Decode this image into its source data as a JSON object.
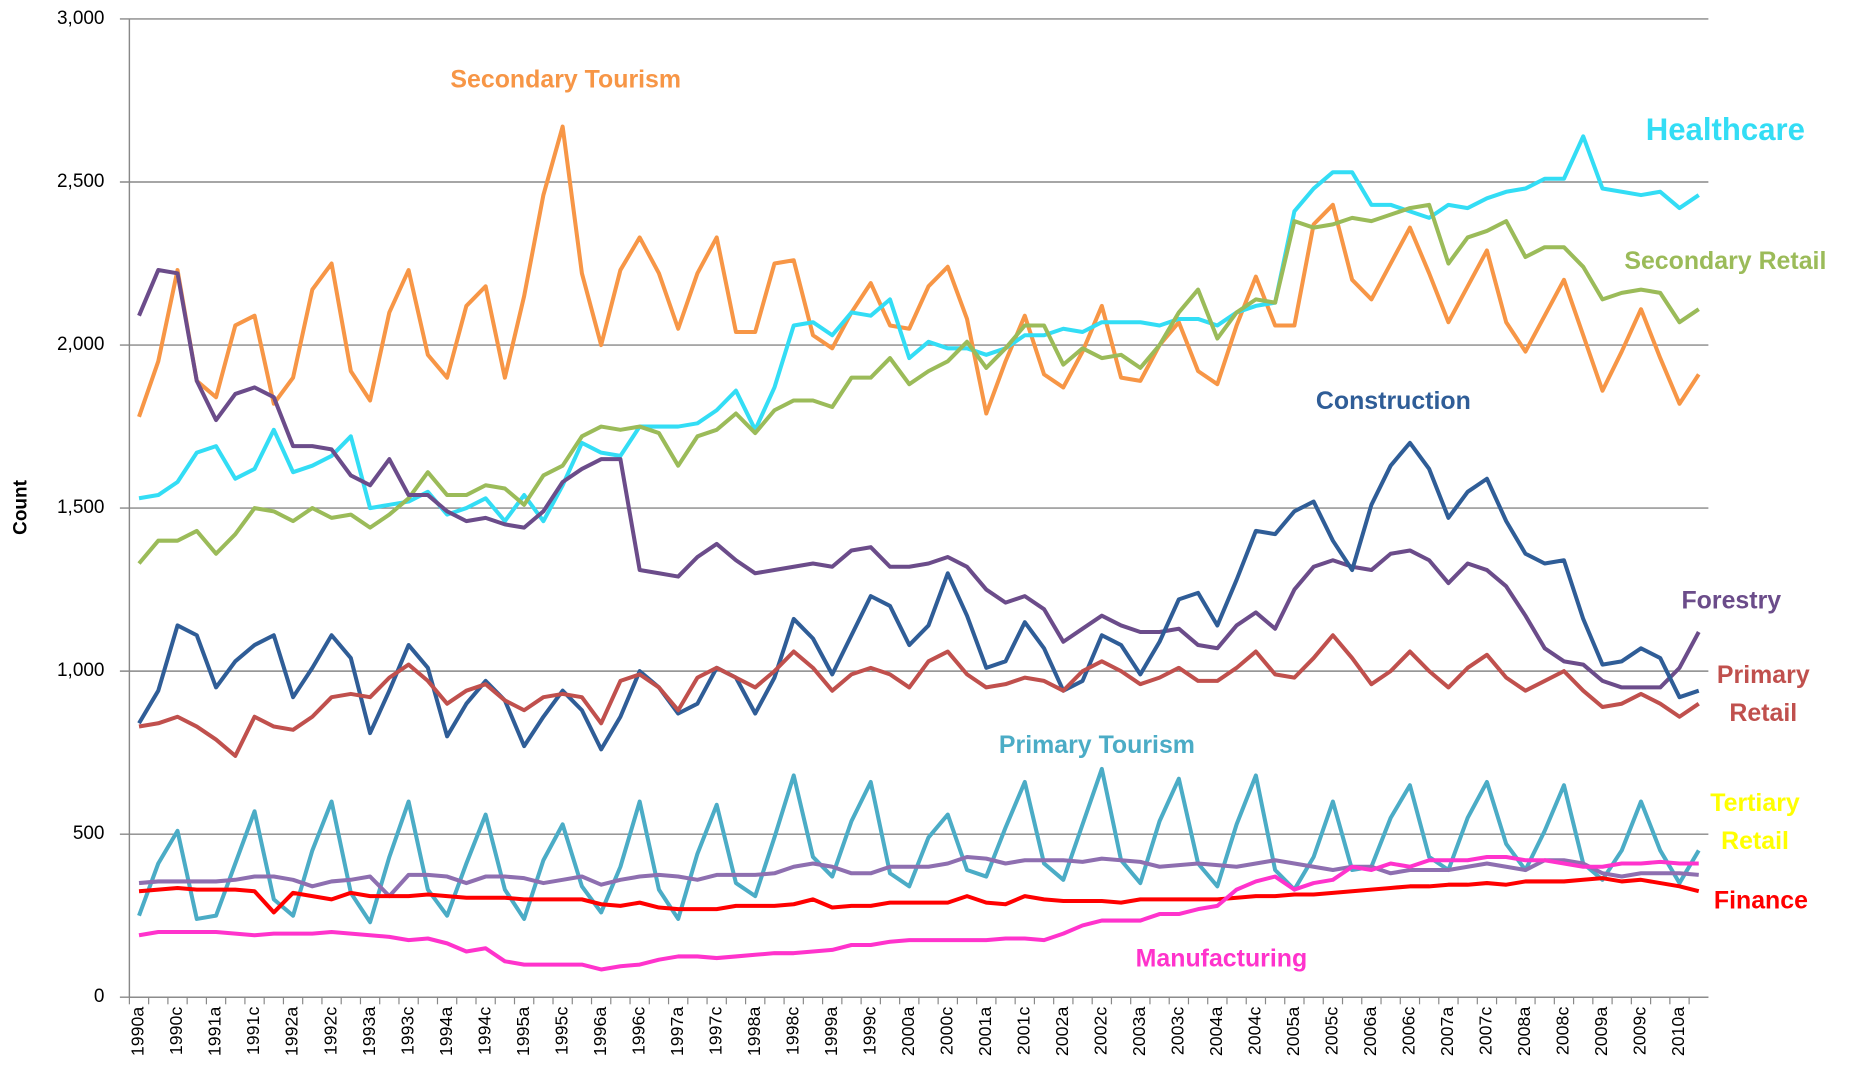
{
  "chart_data": {
    "type": "line",
    "y_label": "Count",
    "grid": true,
    "categories": [
      "1990a",
      null,
      "1990c",
      null,
      "1991a",
      null,
      "1991c",
      null,
      "1992a",
      null,
      "1992c",
      null,
      "1993a",
      null,
      "1993c",
      null,
      "1994a",
      null,
      "1994c",
      null,
      "1995a",
      null,
      "1995c",
      null,
      "1996a",
      null,
      "1996c",
      null,
      "1997a",
      null,
      "1997c",
      null,
      "1998a",
      null,
      "1998c",
      null,
      "1999a",
      null,
      "1999c",
      null,
      "2000a",
      null,
      "2000c",
      null,
      "2001a",
      null,
      "2001c",
      null,
      "2002a",
      null,
      "2002c",
      null,
      "2003a",
      null,
      "2003c",
      null,
      "2004a",
      null,
      "2004c",
      null,
      "2005a",
      null,
      "2005c",
      null,
      "2006a",
      null,
      "2006c",
      null,
      "2007a",
      null,
      "2007c",
      null,
      "2008a",
      null,
      "2008c",
      null,
      "2009a",
      null,
      "2009c",
      null,
      "2010a",
      null
    ],
    "ylim": [
      0,
      3000
    ],
    "yticks": [
      0,
      500,
      {
        "value": 1000,
        "label": "1,000"
      },
      {
        "value": 1500,
        "label": "1,500"
      },
      {
        "value": 2000,
        "label": "2,000"
      },
      {
        "value": 2500,
        "label": "2,500"
      },
      {
        "value": 3000,
        "label": "3,000"
      }
    ],
    "series": [
      {
        "name": "Secondary Tourism",
        "color": "#f79646",
        "label_color": "#f79646",
        "values": [
          1780,
          1950,
          2230,
          1890,
          1840,
          2060,
          2090,
          1820,
          1900,
          2170,
          2250,
          1920,
          1830,
          2100,
          2230,
          1970,
          1900,
          2120,
          2180,
          1900,
          2150,
          2460,
          2670,
          2220,
          2000,
          2230,
          2330,
          2220,
          2050,
          2220,
          2330,
          2040,
          2040,
          2250,
          2260,
          2030,
          1990,
          2100,
          2190,
          2060,
          2050,
          2180,
          2240,
          2080,
          1790,
          1950,
          2090,
          1910,
          1870,
          1980,
          2120,
          1900,
          1890,
          2000,
          2070,
          1920,
          1880,
          2060,
          2210,
          2060,
          2060,
          2370,
          2430,
          2200,
          2140,
          2250,
          2360,
          2220,
          2070,
          2180,
          2290,
          2070,
          1980,
          2090,
          2200,
          2030,
          1860,
          1980,
          2110,
          1960,
          1820,
          1910
        ]
      },
      {
        "name": "Healthcare",
        "color": "#33ddf5",
        "label_color": "#33ddf5",
        "values": [
          1530,
          1540,
          1580,
          1670,
          1690,
          1590,
          1620,
          1740,
          1610,
          1630,
          1660,
          1720,
          1500,
          1510,
          1520,
          1550,
          1480,
          1500,
          1530,
          1460,
          1540,
          1460,
          1570,
          1700,
          1670,
          1660,
          1750,
          1750,
          1750,
          1760,
          1800,
          1860,
          1740,
          1870,
          2060,
          2070,
          2030,
          2100,
          2090,
          2140,
          1960,
          2010,
          1990,
          1990,
          1970,
          1990,
          2030,
          2030,
          2050,
          2040,
          2070,
          2070,
          2070,
          2060,
          2080,
          2080,
          2060,
          2100,
          2120,
          2130,
          2410,
          2480,
          2530,
          2530,
          2430,
          2430,
          2410,
          2390,
          2430,
          2420,
          2450,
          2470,
          2480,
          2510,
          2510,
          2640,
          2480,
          2470,
          2460,
          2470,
          2420,
          2460
        ]
      },
      {
        "name": "Secondary Retail",
        "color": "#9bbb59",
        "label_color": "#9bbb59",
        "values": [
          1330,
          1400,
          1400,
          1430,
          1360,
          1420,
          1500,
          1490,
          1460,
          1500,
          1470,
          1480,
          1440,
          1480,
          1530,
          1610,
          1540,
          1540,
          1570,
          1560,
          1510,
          1600,
          1630,
          1720,
          1750,
          1740,
          1750,
          1730,
          1630,
          1720,
          1740,
          1790,
          1730,
          1800,
          1830,
          1830,
          1810,
          1900,
          1900,
          1960,
          1880,
          1920,
          1950,
          2010,
          1930,
          1990,
          2060,
          2060,
          1940,
          1990,
          1960,
          1970,
          1930,
          2000,
          2100,
          2170,
          2020,
          2100,
          2140,
          2130,
          2380,
          2360,
          2370,
          2390,
          2380,
          2400,
          2420,
          2430,
          2250,
          2330,
          2350,
          2380,
          2270,
          2300,
          2300,
          2240,
          2140,
          2160,
          2170,
          2160,
          2070,
          2110
        ]
      },
      {
        "name": "Forestry",
        "color": "#6b4c8a",
        "label_color": "#6b4c8a",
        "values": [
          2090,
          2230,
          2220,
          1890,
          1770,
          1850,
          1870,
          1840,
          1690,
          1690,
          1680,
          1600,
          1570,
          1650,
          1540,
          1540,
          1490,
          1460,
          1470,
          1450,
          1440,
          1490,
          1580,
          1620,
          1650,
          1650,
          1310,
          1300,
          1290,
          1350,
          1390,
          1340,
          1300,
          1310,
          1320,
          1330,
          1320,
          1370,
          1380,
          1320,
          1320,
          1330,
          1350,
          1320,
          1250,
          1210,
          1230,
          1190,
          1090,
          1130,
          1170,
          1140,
          1120,
          1120,
          1130,
          1080,
          1070,
          1140,
          1180,
          1130,
          1250,
          1320,
          1340,
          1320,
          1310,
          1360,
          1370,
          1340,
          1270,
          1330,
          1310,
          1260,
          1170,
          1070,
          1030,
          1020,
          970,
          950,
          950,
          950,
          1010,
          1120
        ]
      },
      {
        "name": "Construction",
        "color": "#2f5d97",
        "label_color": "#2f5d97",
        "values": [
          840,
          940,
          1140,
          1110,
          950,
          1030,
          1080,
          1110,
          920,
          1010,
          1110,
          1040,
          810,
          940,
          1080,
          1010,
          800,
          900,
          970,
          910,
          770,
          860,
          940,
          880,
          760,
          860,
          1000,
          950,
          870,
          900,
          1010,
          980,
          870,
          980,
          1160,
          1100,
          990,
          1110,
          1230,
          1200,
          1080,
          1140,
          1300,
          1170,
          1010,
          1030,
          1150,
          1070,
          940,
          970,
          1110,
          1080,
          990,
          1090,
          1220,
          1240,
          1140,
          1280,
          1430,
          1420,
          1490,
          1520,
          1400,
          1310,
          1510,
          1630,
          1700,
          1620,
          1470,
          1550,
          1590,
          1460,
          1360,
          1330,
          1340,
          1160,
          1020,
          1030,
          1070,
          1040,
          920,
          940
        ]
      },
      {
        "name": "Primary Retail",
        "color": "#c0504d",
        "label_color": "#c0504d",
        "values": [
          830,
          840,
          860,
          830,
          790,
          740,
          860,
          830,
          820,
          860,
          920,
          930,
          920,
          980,
          1020,
          970,
          900,
          940,
          960,
          910,
          880,
          920,
          930,
          920,
          840,
          970,
          990,
          950,
          880,
          980,
          1010,
          980,
          950,
          1000,
          1060,
          1010,
          940,
          990,
          1010,
          990,
          950,
          1030,
          1060,
          990,
          950,
          960,
          980,
          970,
          940,
          1000,
          1030,
          1000,
          960,
          980,
          1010,
          970,
          970,
          1010,
          1060,
          990,
          980,
          1040,
          1110,
          1040,
          960,
          1000,
          1060,
          1000,
          950,
          1010,
          1050,
          980,
          940,
          970,
          1000,
          940,
          890,
          900,
          930,
          900,
          860,
          900
        ]
      },
      {
        "name": "Primary Tourism",
        "color": "#4bacc6",
        "label_color": "#4bacc6",
        "values": [
          250,
          410,
          510,
          240,
          250,
          410,
          570,
          300,
          250,
          450,
          600,
          320,
          230,
          430,
          600,
          330,
          250,
          410,
          560,
          330,
          240,
          420,
          530,
          340,
          260,
          400,
          600,
          330,
          240,
          440,
          590,
          350,
          310,
          490,
          680,
          430,
          370,
          540,
          660,
          380,
          340,
          490,
          560,
          390,
          370,
          520,
          660,
          410,
          360,
          530,
          700,
          420,
          350,
          540,
          670,
          410,
          340,
          530,
          680,
          390,
          330,
          430,
          600,
          390,
          400,
          550,
          650,
          430,
          390,
          550,
          660,
          470,
          390,
          510,
          650,
          410,
          360,
          450,
          600,
          450,
          350,
          450
        ]
      },
      {
        "name": "Tertiary Retail",
        "color": "#8e6fb0",
        "label_color": "#ffff00",
        "values": [
          350,
          355,
          355,
          355,
          355,
          360,
          370,
          370,
          360,
          340,
          355,
          360,
          370,
          310,
          375,
          375,
          370,
          350,
          370,
          370,
          365,
          350,
          360,
          370,
          345,
          360,
          370,
          375,
          370,
          360,
          375,
          375,
          375,
          380,
          400,
          410,
          400,
          380,
          380,
          400,
          400,
          400,
          410,
          430,
          425,
          410,
          420,
          420,
          420,
          415,
          425,
          420,
          415,
          400,
          405,
          410,
          405,
          400,
          410,
          420,
          410,
          400,
          390,
          400,
          400,
          380,
          390,
          390,
          390,
          400,
          410,
          400,
          390,
          420,
          420,
          410,
          380,
          370,
          380,
          380,
          380,
          375
        ]
      },
      {
        "name": "Finance",
        "color": "#ff0000",
        "label_color": "#ff0000",
        "values": [
          325,
          330,
          335,
          330,
          330,
          330,
          325,
          260,
          320,
          310,
          300,
          320,
          310,
          310,
          310,
          315,
          310,
          305,
          305,
          305,
          300,
          300,
          300,
          300,
          285,
          280,
          290,
          275,
          270,
          270,
          270,
          280,
          280,
          280,
          285,
          300,
          275,
          280,
          280,
          290,
          290,
          290,
          290,
          310,
          290,
          285,
          310,
          300,
          295,
          295,
          295,
          290,
          300,
          300,
          300,
          300,
          300,
          305,
          310,
          310,
          315,
          315,
          320,
          325,
          330,
          335,
          340,
          340,
          345,
          345,
          350,
          345,
          355,
          355,
          355,
          360,
          365,
          355,
          360,
          350,
          340,
          325
        ]
      },
      {
        "name": "Manufacturing",
        "color": "#ff33cc",
        "label_color": "#ff33cc",
        "values": [
          190,
          200,
          200,
          200,
          200,
          195,
          190,
          195,
          195,
          195,
          200,
          195,
          190,
          185,
          175,
          180,
          165,
          140,
          150,
          110,
          100,
          100,
          100,
          100,
          85,
          95,
          100,
          115,
          125,
          125,
          120,
          125,
          130,
          135,
          135,
          140,
          145,
          160,
          160,
          170,
          175,
          175,
          175,
          175,
          175,
          180,
          180,
          175,
          195,
          220,
          235,
          235,
          235,
          255,
          255,
          270,
          280,
          330,
          355,
          370,
          330,
          350,
          360,
          400,
          390,
          410,
          400,
          420,
          420,
          420,
          430,
          430,
          420,
          420,
          410,
          400,
          400,
          410,
          410,
          415,
          410,
          410
        ]
      }
    ]
  }
}
